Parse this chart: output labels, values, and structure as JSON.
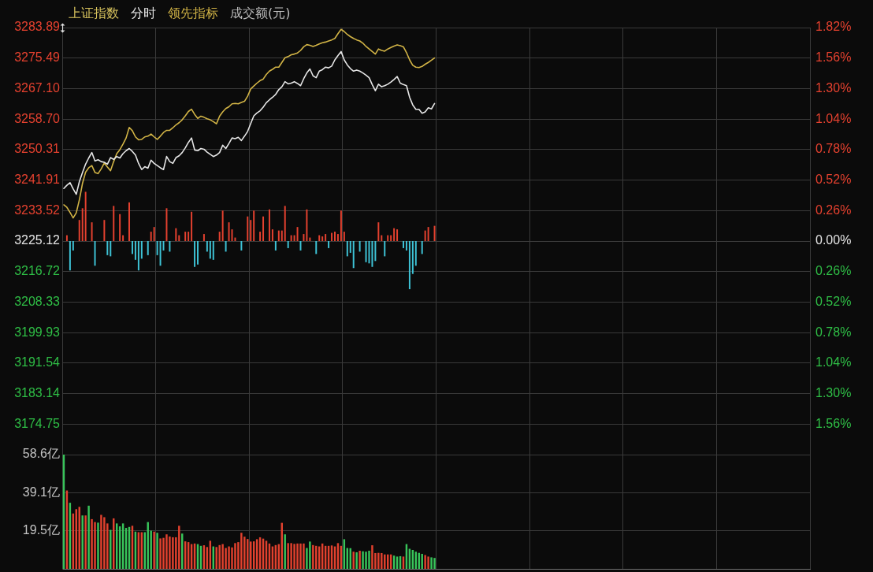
{
  "chart_data": {
    "type": "line",
    "title": "上证指数",
    "categories": [
      null,
      null,
      null,
      null,
      null,
      null,
      null,
      null,
      null,
      null,
      null,
      null,
      null,
      null,
      null,
      null,
      null,
      null,
      null,
      null,
      null,
      null,
      null,
      null,
      null,
      null,
      null,
      null,
      null,
      null,
      null,
      null,
      null,
      null,
      null,
      null,
      null,
      null,
      null,
      null,
      null,
      null,
      null,
      null,
      null,
      null,
      null,
      null,
      null,
      null,
      null,
      null,
      null,
      null,
      null,
      null,
      null,
      null,
      null,
      null,
      null,
      null,
      null,
      null,
      null,
      null,
      null,
      null,
      null,
      null,
      null,
      null,
      null,
      null,
      null,
      null,
      null,
      null,
      null,
      null,
      null,
      null,
      null,
      null,
      null,
      null,
      null,
      null,
      null,
      null,
      null,
      null,
      null,
      null,
      null,
      null,
      null,
      null,
      null,
      null,
      null,
      null,
      null,
      null,
      null,
      null,
      null,
      null,
      null,
      null,
      null,
      null,
      null,
      null,
      null,
      null,
      null,
      null,
      null,
      null,
      null,
      null,
      null,
      null,
      null,
      null,
      null,
      null,
      null,
      null,
      null,
      null,
      null,
      null,
      null,
      null,
      null,
      null,
      null,
      null,
      null,
      null,
      null,
      null,
      null,
      null,
      null,
      null,
      null,
      null,
      null,
      null,
      null,
      null,
      null,
      null,
      null,
      null,
      null,
      null,
      null,
      null,
      null,
      null,
      null,
      null,
      null,
      null,
      null,
      null,
      null,
      null,
      null,
      null,
      null,
      null,
      null,
      null,
      null,
      null,
      null,
      null,
      null,
      null,
      null,
      null,
      null,
      null,
      null,
      null,
      null,
      null,
      null,
      null,
      null,
      null,
      null,
      null,
      null,
      null,
      null,
      null,
      null,
      null,
      null,
      null,
      null,
      null,
      null,
      null,
      null,
      null,
      null,
      null,
      null,
      null,
      null,
      null,
      null,
      null,
      null,
      null,
      null,
      null,
      null,
      null,
      null,
      null,
      null,
      null,
      null,
      null,
      null,
      null,
      null,
      null,
      null,
      null,
      null,
      null
    ],
    "series": [
      {
        "name": "分时",
        "color": "#e6e6e6",
        "values": [
          3239.6,
          3240.5,
          3241.2,
          3239.5,
          3238.0,
          3241.5,
          3244.0,
          3246.3,
          3248.0,
          3249.5,
          3247.2,
          3247.5,
          3247.0,
          3246.8,
          3246.3,
          3248.1,
          3247.6,
          3248.4,
          3248.0,
          3249.2,
          3250.0,
          3250.6,
          3249.8,
          3248.8,
          3246.5,
          3244.8,
          3245.6,
          3245.2,
          3247.4,
          3246.5,
          3245.9,
          3245.3,
          3244.8,
          3248.4,
          3247.0,
          3246.5,
          3248.1,
          3248.6,
          3249.5,
          3250.8,
          3252.3,
          3253.5,
          3250.2,
          3250.0,
          3250.6,
          3250.4,
          3249.6,
          3249.0,
          3248.4,
          3248.8,
          3249.5,
          3251.5,
          3250.6,
          3252.0,
          3253.5,
          3253.3,
          3253.7,
          3252.8,
          3254.0,
          3255.3,
          3257.5,
          3259.6,
          3260.4,
          3261.0,
          3262.0,
          3263.2,
          3264.0,
          3264.7,
          3265.5,
          3266.8,
          3267.6,
          3269.0,
          3268.4,
          3268.6,
          3269.0,
          3268.5,
          3267.9,
          3269.8,
          3271.4,
          3272.5,
          3270.6,
          3270.1,
          3271.9,
          3272.3,
          3273.0,
          3272.8,
          3273.3,
          3275.0,
          3276.2,
          3277.3,
          3275.0,
          3273.6,
          3272.6,
          3271.9,
          3272.2,
          3271.9,
          3271.4,
          3270.8,
          3270.1,
          3268.2,
          3266.5,
          3268.3,
          3267.6,
          3267.9,
          3268.3,
          3268.9,
          3269.6,
          3270.4,
          3268.6,
          3268.2,
          3267.9,
          3264.7,
          3262.6,
          3261.4,
          3261.4,
          3260.3,
          3260.7,
          3261.8,
          3261.5,
          3263.0,
          null,
          null,
          null,
          null,
          null,
          null,
          null,
          null,
          null,
          null,
          null,
          null,
          null,
          null,
          null,
          null,
          null,
          null,
          null,
          null,
          null,
          null,
          null,
          null,
          null,
          null,
          null,
          null,
          null,
          null,
          null,
          null,
          null,
          null,
          null,
          null,
          null,
          null,
          null,
          null,
          null,
          null,
          null,
          null,
          null,
          null,
          null,
          null,
          null,
          null,
          null,
          null,
          null,
          null,
          null,
          null,
          null,
          null,
          null,
          null,
          null,
          null,
          null,
          null,
          null,
          null,
          null,
          null,
          null,
          null,
          null,
          null,
          null,
          null,
          null,
          null,
          null,
          null,
          null,
          null,
          null,
          null,
          null,
          null,
          null,
          null,
          null,
          null,
          null,
          null,
          null,
          null,
          null,
          null,
          null,
          null,
          null,
          null,
          null,
          null,
          null,
          null,
          null,
          null,
          null,
          null,
          null,
          null,
          null,
          null,
          null,
          null,
          null,
          null,
          null,
          null,
          null,
          null,
          null,
          null
        ]
      },
      {
        "name": "领先指标",
        "color": "#d2b446",
        "values": [
          3235.1,
          3234.4,
          3233.0,
          3231.5,
          3232.9,
          3236.5,
          3241.0,
          3244.1,
          3245.3,
          3245.9,
          3244.0,
          3243.7,
          3245.0,
          3246.6,
          3245.5,
          3244.5,
          3247.0,
          3249.2,
          3250.3,
          3251.8,
          3253.5,
          3256.4,
          3255.5,
          3253.8,
          3253.0,
          3253.1,
          3253.8,
          3254.0,
          3254.6,
          3253.8,
          3253.1,
          3254.0,
          3255.0,
          3255.6,
          3255.6,
          3256.3,
          3257.1,
          3257.7,
          3258.5,
          3259.6,
          3260.8,
          3261.4,
          3260.0,
          3258.9,
          3259.5,
          3259.2,
          3258.8,
          3258.5,
          3258.0,
          3257.4,
          3259.5,
          3260.7,
          3261.6,
          3262.1,
          3262.9,
          3263.0,
          3262.9,
          3263.3,
          3263.6,
          3265.0,
          3267.0,
          3267.8,
          3268.6,
          3269.3,
          3269.7,
          3271.0,
          3271.9,
          3272.4,
          3273.0,
          3273.0,
          3274.3,
          3275.6,
          3275.9,
          3276.4,
          3276.6,
          3276.9,
          3277.6,
          3278.6,
          3279.2,
          3279.0,
          3278.7,
          3279.0,
          3279.4,
          3279.7,
          3279.9,
          3280.2,
          3280.5,
          3280.9,
          3282.2,
          3283.4,
          3282.8,
          3282.0,
          3281.4,
          3280.9,
          3280.5,
          3280.2,
          3279.6,
          3278.7,
          3278.0,
          3277.3,
          3276.6,
          3278.0,
          3277.6,
          3277.4,
          3278.0,
          3278.4,
          3278.8,
          3279.1,
          3278.9,
          3278.6,
          3277.0,
          3275.0,
          3273.5,
          3273.0,
          3272.9,
          3273.2,
          3273.8,
          3274.3,
          3274.9,
          3275.5,
          null,
          null,
          null,
          null,
          null,
          null,
          null,
          null,
          null,
          null,
          null,
          null,
          null,
          null,
          null,
          null,
          null,
          null,
          null,
          null,
          null,
          null,
          null,
          null,
          null,
          null,
          null,
          null,
          null,
          null,
          null,
          null,
          null,
          null,
          null,
          null,
          null,
          null,
          null,
          null,
          null,
          null,
          null,
          null,
          null,
          null,
          null,
          null,
          null,
          null,
          null,
          null,
          null,
          null,
          null,
          null,
          null,
          null,
          null,
          null,
          null,
          null,
          null,
          null,
          null,
          null,
          null,
          null,
          null,
          null,
          null,
          null,
          null,
          null,
          null,
          null,
          null,
          null,
          null,
          null,
          null,
          null,
          null,
          null,
          null,
          null,
          null,
          null,
          null,
          null,
          null,
          null,
          null,
          null,
          null,
          null,
          null,
          null,
          null,
          null,
          null,
          null,
          null,
          null,
          null,
          null,
          null,
          null,
          null,
          null,
          null,
          null,
          null,
          null,
          null,
          null,
          null,
          null,
          null,
          null
        ]
      },
      {
        "type": "bar",
        "axis": "y2",
        "color": "#e5412f",
        "values": [
          null,
          0.05,
          null,
          null,
          null,
          0.18,
          0.28,
          0.42,
          null,
          0.16,
          null,
          null,
          null,
          0.18,
          null,
          null,
          0.3,
          null,
          0.23,
          0.05,
          null,
          0.33,
          null,
          null,
          null,
          null,
          null,
          null,
          0.08,
          0.12,
          null,
          null,
          null,
          0.28,
          null,
          null,
          0.11,
          0.05,
          null,
          0.08,
          0.08,
          0.25,
          null,
          null,
          null,
          0.06,
          null,
          null,
          null,
          null,
          0.08,
          0.26,
          null,
          0.16,
          0.1,
          0.03,
          null,
          null,
          null,
          0.21,
          0.18,
          0.26,
          null,
          0.08,
          0.21,
          null,
          0.27,
          0.1,
          null,
          0.09,
          0.09,
          0.3,
          null,
          0.05,
          0.05,
          0.12,
          null,
          0.06,
          0.27,
          0.03,
          null,
          null,
          0.05,
          0.04,
          0.06,
          null,
          0.07,
          0.08,
          0.06,
          0.26,
          0.08,
          null,
          null,
          null,
          null,
          null,
          null,
          null,
          null,
          null,
          null,
          0.16,
          0.05,
          null,
          0.05,
          0.05,
          0.11,
          0.1,
          null,
          null,
          null,
          null,
          null,
          null,
          null,
          null,
          0.09,
          0.12,
          null,
          0.13,
          null,
          null,
          null,
          null,
          null,
          null,
          null,
          null,
          null,
          null,
          null,
          null,
          null,
          null,
          null,
          null,
          null,
          null,
          null,
          null,
          null,
          null,
          null,
          null,
          null,
          null,
          null,
          null,
          null,
          null,
          null,
          null,
          null,
          null,
          null,
          null,
          null,
          null,
          null,
          null,
          null,
          null,
          null,
          null,
          null,
          null,
          null,
          null,
          null,
          null,
          null,
          null,
          null,
          null,
          null,
          null,
          null,
          null,
          null,
          null,
          null,
          null,
          null,
          null,
          null,
          null,
          null,
          null,
          null,
          null,
          null,
          null,
          null,
          null,
          null,
          null,
          null,
          null,
          null,
          null,
          null,
          null,
          null,
          null,
          null,
          null,
          null,
          null,
          null,
          null,
          null,
          null,
          null,
          null,
          null,
          null,
          null,
          null,
          null,
          null,
          null,
          null,
          null,
          null,
          null,
          null,
          null,
          null,
          null,
          null,
          null,
          null,
          null,
          null,
          null,
          null,
          null,
          null,
          null,
          null
        ]
      },
      {
        "type": "bar",
        "axis": "y2",
        "color": "#3ec3d6",
        "values": [
          null,
          null,
          -0.25,
          -0.08,
          null,
          null,
          null,
          null,
          null,
          null,
          -0.21,
          null,
          null,
          null,
          -0.12,
          -0.13,
          null,
          null,
          null,
          null,
          null,
          null,
          -0.11,
          -0.16,
          -0.25,
          -0.15,
          null,
          -0.12,
          null,
          null,
          -0.12,
          -0.21,
          -0.08,
          null,
          -0.09,
          null,
          null,
          null,
          null,
          null,
          null,
          null,
          -0.22,
          -0.2,
          null,
          null,
          -0.09,
          -0.15,
          -0.16,
          null,
          null,
          null,
          -0.09,
          null,
          null,
          null,
          null,
          -0.08,
          null,
          null,
          null,
          null,
          null,
          null,
          null,
          null,
          null,
          null,
          -0.08,
          null,
          null,
          null,
          -0.06,
          null,
          null,
          null,
          -0.08,
          null,
          null,
          null,
          null,
          -0.11,
          null,
          null,
          null,
          -0.06,
          null,
          null,
          null,
          null,
          null,
          -0.13,
          -0.1,
          -0.23,
          null,
          -0.09,
          null,
          -0.18,
          -0.19,
          -0.22,
          -0.17,
          null,
          null,
          -0.13,
          null,
          null,
          null,
          null,
          null,
          -0.06,
          -0.08,
          -0.41,
          -0.28,
          -0.21,
          null,
          -0.11,
          null,
          null,
          null,
          null,
          null,
          null,
          null,
          null,
          null,
          null,
          null,
          null,
          null,
          null,
          null,
          null,
          null,
          null,
          null,
          null,
          null,
          null,
          null,
          null,
          null,
          null,
          null,
          null,
          null,
          null,
          null,
          null,
          null,
          null,
          null,
          null,
          null,
          null,
          null,
          null,
          null,
          null,
          null,
          null,
          null,
          null,
          null,
          null,
          null,
          null,
          null,
          null,
          null,
          null,
          null,
          null,
          null,
          null,
          null,
          null,
          null,
          null,
          null,
          null,
          null,
          null,
          null,
          null,
          null,
          null,
          null,
          null,
          null,
          null,
          null,
          null,
          null,
          null,
          null,
          null,
          null,
          null,
          null,
          null,
          null,
          null,
          null,
          null,
          null,
          null,
          null,
          null,
          null,
          null,
          null,
          null,
          null,
          null,
          null,
          null,
          null,
          null,
          null,
          null,
          null,
          null,
          null,
          null,
          null,
          null,
          null,
          null,
          null,
          null,
          null,
          null,
          null,
          null,
          null,
          null,
          null,
          null,
          null,
          null
        ]
      },
      {
        "type": "bar",
        "axis": "y3",
        "color": "#e2412e",
        "values": [
          null,
          40.2,
          null,
          28.4,
          30.6,
          31.8,
          null,
          27.4,
          null,
          25.5,
          24.0,
          null,
          27.7,
          26.5,
          23.3,
          null,
          25.9,
          null,
          null,
          null,
          null,
          null,
          22.1,
          null,
          18.8,
          18.8,
          null,
          null,
          null,
          19.1,
          null,
          15.6,
          15.9,
          17.7,
          16.6,
          16.2,
          16.2,
          22.1,
          null,
          14.1,
          13.7,
          12.7,
          13.0,
          null,
          null,
          12.1,
          11.2,
          14.4,
          null,
          11.2,
          12.2,
          12.7,
          10.7,
          11.5,
          11.0,
          13.2,
          13.7,
          18.5,
          16.5,
          15.3,
          14.0,
          14.1,
          15.2,
          16.2,
          15.5,
          14.4,
          13.0,
          11.5,
          12.2,
          12.7,
          23.6,
          null,
          13.2,
          13.2,
          12.8,
          13.0,
          13.0,
          13.0,
          null,
          null,
          12.2,
          11.8,
          11.5,
          13.0,
          11.8,
          11.8,
          12.0,
          11.5,
          13.2,
          11.8,
          null,
          null,
          null,
          8.8,
          null,
          9.3,
          null,
          null,
          null,
          12.1,
          8.1,
          8.2,
          8.1,
          7.4,
          7.4,
          7.4,
          null,
          null,
          null,
          6.3,
          null,
          null,
          null,
          null,
          null,
          null,
          7.1,
          6.3,
          null,
          null,
          null,
          null,
          null,
          null,
          null,
          null,
          null,
          null,
          null,
          null,
          null,
          null,
          null,
          null,
          null,
          null,
          null,
          null,
          null,
          null,
          null,
          null,
          null,
          null,
          null,
          null,
          null,
          null,
          null,
          null,
          null,
          null,
          null,
          null,
          null,
          null,
          null,
          null,
          null,
          null,
          null,
          null,
          null,
          null,
          null,
          null,
          null,
          null,
          null,
          null,
          null,
          null,
          null,
          null,
          null,
          null,
          null,
          null,
          null,
          null,
          null,
          null,
          null,
          null,
          null,
          null,
          null,
          null,
          null,
          null,
          null,
          null,
          null,
          null,
          null,
          null,
          null,
          null,
          null,
          null,
          null,
          null,
          null,
          null,
          null,
          null,
          null,
          null,
          null,
          null,
          null,
          null,
          null,
          null,
          null,
          null,
          null,
          null,
          null,
          null,
          null,
          null,
          null,
          null,
          null,
          null,
          null,
          null,
          null,
          null,
          null,
          null,
          null,
          null,
          null,
          null,
          null,
          null,
          null,
          null
        ]
      },
      {
        "type": "bar",
        "axis": "y3",
        "color": "#38c45a",
        "values": [
          58.6,
          null,
          33.9,
          null,
          null,
          null,
          27.4,
          null,
          32.4,
          null,
          null,
          23.7,
          null,
          null,
          null,
          20.0,
          null,
          23.3,
          21.8,
          23.3,
          21.0,
          21.5,
          null,
          19.1,
          null,
          null,
          18.8,
          24.0,
          19.6,
          null,
          18.5,
          null,
          null,
          null,
          null,
          null,
          null,
          null,
          18.1,
          null,
          null,
          null,
          null,
          12.7,
          11.8,
          null,
          null,
          null,
          11.5,
          null,
          null,
          null,
          null,
          null,
          null,
          null,
          null,
          null,
          null,
          null,
          null,
          null,
          null,
          null,
          null,
          null,
          null,
          null,
          null,
          null,
          null,
          17.7,
          null,
          null,
          null,
          null,
          null,
          null,
          10.7,
          14.0,
          null,
          null,
          null,
          null,
          null,
          null,
          null,
          null,
          null,
          null,
          15.2,
          10.7,
          10.6,
          null,
          8.5,
          null,
          9.0,
          8.8,
          9.3,
          null,
          null,
          null,
          null,
          null,
          null,
          null,
          6.8,
          6.3,
          6.5,
          null,
          12.7,
          10.3,
          9.7,
          8.8,
          8.2,
          7.7,
          null,
          null,
          5.9,
          5.6,
          null,
          null,
          null,
          null,
          null,
          null,
          null,
          null,
          null,
          null,
          null,
          null,
          null,
          null,
          null,
          null,
          null,
          null,
          null,
          null,
          null,
          null,
          null,
          null,
          null,
          null,
          null,
          null,
          null,
          null,
          null,
          null,
          null,
          null,
          null,
          null,
          null,
          null,
          null,
          null,
          null,
          null,
          null,
          null,
          null,
          null,
          null,
          null,
          null,
          null,
          null,
          null,
          null,
          null,
          null,
          null,
          null,
          null,
          null,
          null,
          null,
          null,
          null,
          null,
          null,
          null,
          null,
          null,
          null,
          null,
          null,
          null,
          null,
          null,
          null,
          null,
          null,
          null,
          null,
          null,
          null,
          null,
          null,
          null,
          null,
          null,
          null,
          null,
          null,
          null,
          null,
          null,
          null,
          null,
          null,
          null,
          null,
          null,
          null,
          null,
          null,
          null,
          null,
          null,
          null,
          null,
          null,
          null,
          null,
          null,
          null,
          null,
          null,
          null,
          null,
          null,
          null,
          null,
          null,
          null
        ]
      }
    ],
    "ylim": [
      3166.35,
      3283.89
    ],
    "yticks": [
      3283.89,
      3275.49,
      {
        "value": 3267.1,
        "label": "3267.10"
      },
      {
        "value": 3258.7,
        "label": "3258.70"
      },
      3250.31,
      3241.91,
      3233.52,
      3225.12,
      3216.72,
      3208.33,
      3199.93,
      3191.54,
      3183.14,
      3174.75
    ],
    "y2lim": [
      -1.82,
      1.82
    ],
    "y2ticks": [
      {
        "value": 1.82,
        "label": "1.82%"
      },
      {
        "value": 1.56,
        "label": "1.56%"
      },
      {
        "value": 1.3,
        "label": "1.30%"
      },
      {
        "value": 1.04,
        "label": "1.04%"
      },
      {
        "value": 0.78,
        "label": "0.78%"
      },
      {
        "value": 0.52,
        "label": "0.52%"
      },
      {
        "value": 0.26,
        "label": "0.26%"
      },
      {
        "value": 0,
        "label": "0.00%"
      },
      {
        "value": -0.26,
        "label": "0.26%"
      },
      {
        "value": -0.52,
        "label": "0.52%"
      },
      {
        "value": -0.78,
        "label": "0.78%"
      },
      {
        "value": -1.04,
        "label": "1.04%"
      },
      {
        "value": -1.3,
        "label": "1.30%"
      },
      {
        "value": -1.56,
        "label": "1.56%"
      }
    ],
    "y3label": "成交额(元)",
    "y3lim": [
      0,
      58.6
    ],
    "y3ticks": [
      {
        "value": 19.5,
        "label": "19.5亿"
      },
      {
        "value": 39.1,
        "label": "39.1亿"
      },
      {
        "value": 58.6,
        "label": "58.6亿"
      }
    ],
    "grid": true,
    "legend": "top left",
    "marker": "none"
  }
}
